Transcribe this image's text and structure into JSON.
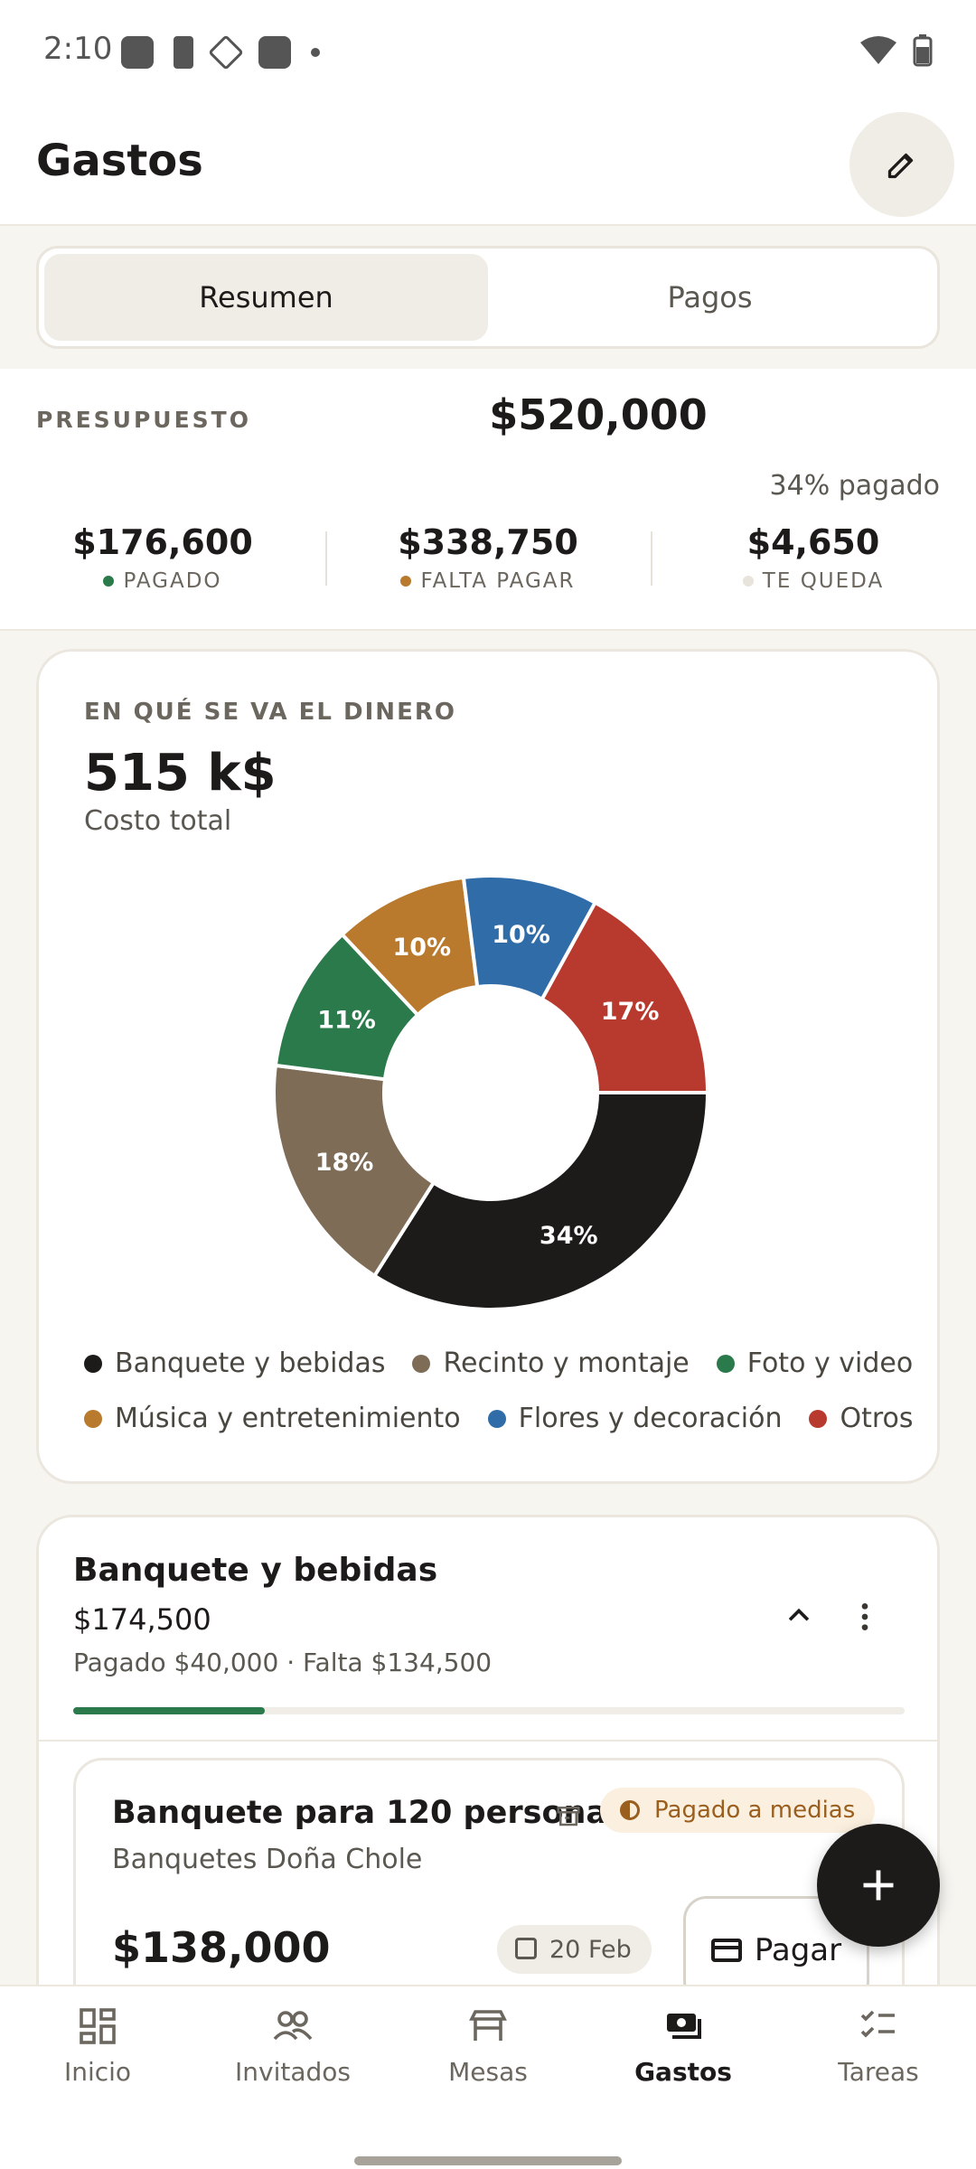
{
  "status_bar": {
    "time": "2:10"
  },
  "header": {
    "title": "Gastos"
  },
  "tabs": [
    {
      "label": "Resumen",
      "active": true
    },
    {
      "label": "Pagos",
      "active": false
    }
  ],
  "budget": {
    "label": "PRESUPUESTO",
    "total": "$520,000",
    "paid_pct": "34% pagado",
    "stats": [
      {
        "value": "$176,600",
        "label": "PAGADO",
        "color": "#2b7a4b"
      },
      {
        "value": "$338,750",
        "label": "FALTA PAGAR",
        "color": "#b97a2d"
      },
      {
        "value": "$4,650",
        "label": "TE QUEDA",
        "color": "#e8e4dc"
      }
    ]
  },
  "spend": {
    "caption": "EN QUÉ SE VA EL DINERO",
    "total": "515 k$",
    "subtitle": "Costo total"
  },
  "chart_data": {
    "type": "pie",
    "style": "donut",
    "categories": [
      "Banquete y bebidas",
      "Recinto y montaje",
      "Foto y video",
      "Música y entretenimiento",
      "Flores y decoración",
      "Otros"
    ],
    "values": [
      34,
      18,
      11,
      10,
      10,
      17
    ],
    "labels": [
      "34%",
      "18%",
      "11%",
      "10%",
      "10%",
      "17%"
    ],
    "colors": [
      "#1d1b19",
      "#7e6c57",
      "#2b7a4b",
      "#b97a2d",
      "#2f6ca8",
      "#b83a2e"
    ]
  },
  "category": {
    "title": "Banquete y bebidas",
    "amount": "$174,500",
    "detail": "Pagado $40,000 · Falta $134,500",
    "progress": 0.23,
    "item": {
      "name": "Banquete para 120 personas",
      "badge": "Pagado a medias",
      "vendor": "Banquetes Doña Chole",
      "price": "$138,000",
      "date": "20 Feb",
      "pay_label": "Pagar"
    }
  },
  "nav": [
    {
      "label": "Inicio",
      "icon": "dashboard-icon",
      "active": false
    },
    {
      "label": "Invitados",
      "icon": "people-icon",
      "active": false
    },
    {
      "label": "Mesas",
      "icon": "table-icon",
      "active": false
    },
    {
      "label": "Gastos",
      "icon": "payments-icon",
      "active": true
    },
    {
      "label": "Tareas",
      "icon": "checklist-icon",
      "active": false
    }
  ]
}
